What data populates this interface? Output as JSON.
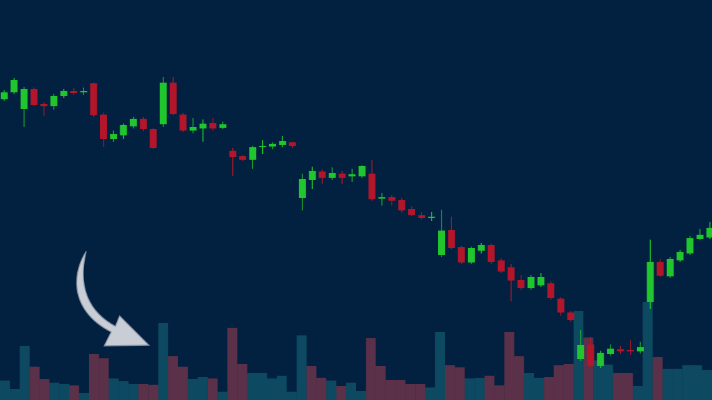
{
  "chart_data": {
    "type": "candlestick",
    "ylim": [
      0,
      576
    ],
    "volume_ylim": [
      0,
      576
    ],
    "up_color": "#21c52d",
    "down_color": "#b3162a",
    "open": [
      433,
      443,
      419,
      448,
      426,
      423,
      438,
      445,
      443,
      456,
      411,
      376,
      381,
      394,
      405,
      390,
      397,
      457,
      411,
      388,
      391,
      399,
      392,
      359,
      351,
      346,
      364,
      365,
      367,
      371,
      291,
      317,
      329,
      320,
      326,
      322,
      322,
      326,
      290,
      292,
      288,
      275,
      266,
      262,
      209,
      245,
      220,
      198,
      215,
      223,
      201,
      191,
      173,
      161,
      165,
      168,
      146,
      126,
      59,
      80,
      49,
      66,
      73,
      72,
      70,
      141,
      199,
      178,
      201,
      211,
      232,
      234
    ],
    "high": [
      446,
      464,
      451,
      450,
      429,
      441,
      448,
      449,
      450,
      457,
      414,
      388,
      398,
      408,
      408,
      391,
      465,
      465,
      413,
      406,
      404,
      406,
      401,
      363,
      353,
      366,
      374,
      371,
      380,
      372,
      326,
      336,
      332,
      335,
      330,
      333,
      338,
      346,
      298,
      295,
      291,
      279,
      271,
      271,
      274,
      264,
      222,
      221,
      226,
      225,
      204,
      196,
      180,
      180,
      183,
      171,
      148,
      128,
      101,
      91,
      71,
      80,
      78,
      86,
      84,
      231,
      203,
      206,
      216,
      236,
      246,
      256
    ],
    "low": [
      431,
      441,
      393,
      423,
      409,
      418,
      435,
      439,
      439,
      408,
      364,
      372,
      376,
      391,
      387,
      362,
      393,
      410,
      386,
      384,
      372,
      388,
      390,
      323,
      344,
      333,
      354,
      361,
      364,
      363,
      273,
      304,
      311,
      317,
      311,
      314,
      320,
      287,
      280,
      280,
      270,
      265,
      260,
      258,
      206,
      217,
      196,
      196,
      211,
      196,
      183,
      142,
      158,
      159,
      163,
      144,
      121,
      113,
      56,
      48,
      46,
      64,
      66,
      65,
      67,
      131,
      177,
      176,
      199,
      209,
      230,
      232
    ],
    "close": [
      443,
      461,
      448,
      425,
      423,
      438,
      445,
      442,
      445,
      410,
      376,
      383,
      396,
      405,
      390,
      363,
      457,
      412,
      388,
      393,
      398,
      391,
      397,
      350,
      346,
      364,
      366,
      369,
      373,
      366,
      318,
      330,
      320,
      327,
      320,
      325,
      337,
      289,
      292,
      287,
      273,
      266,
      262,
      264,
      244,
      219,
      198,
      219,
      223,
      199,
      185,
      172,
      161,
      177,
      177,
      147,
      126,
      115,
      79,
      49,
      68,
      74,
      70,
      70,
      76,
      199,
      179,
      203,
      213,
      233,
      238,
      248
    ],
    "volume": [
      28,
      16,
      78,
      48,
      30,
      25,
      23,
      21,
      10,
      66,
      60,
      31,
      27,
      23,
      23,
      22,
      111,
      63,
      48,
      30,
      33,
      31,
      12,
      104,
      52,
      39,
      39,
      31,
      35,
      12,
      93,
      49,
      32,
      28,
      20,
      25,
      13,
      89,
      49,
      29,
      29,
      23,
      23,
      18,
      98,
      50,
      47,
      31,
      32,
      35,
      21,
      98,
      63,
      39,
      32,
      33,
      50,
      52,
      128,
      90,
      57,
      51,
      39,
      39,
      20,
      141,
      62,
      45,
      45,
      50,
      50,
      43
    ],
    "volume_colors": [
      "#0d4a62",
      "#0d4a62",
      "#0d4a62",
      "#5b3049",
      "#5b3049",
      "#0d4a62",
      "#0d4a62",
      "#5b3049",
      "#0d4a62",
      "#5b3049",
      "#5b3049",
      "#0d4a62",
      "#0d4a62",
      "#0d4a62",
      "#5b3049",
      "#5b3049",
      "#0d4a62",
      "#5b3049",
      "#5b3049",
      "#0d4a62",
      "#0d4a62",
      "#5b3049",
      "#0d4a62",
      "#5b3049",
      "#5b3049",
      "#0d4a62",
      "#0d4a62",
      "#0d4a62",
      "#0d4a62",
      "#0d4a62",
      "#0d4a62",
      "#5b3049",
      "#5b3049",
      "#0d4a62",
      "#5b3049",
      "#0d4a62",
      "#0d4a62",
      "#5b3049",
      "#5b3049",
      "#5b3049",
      "#5b3049",
      "#5b3049",
      "#5b3049",
      "#0d4a62",
      "#0d4a62",
      "#5b3049",
      "#5b3049",
      "#0d4a62",
      "#0d4a62",
      "#5b3049",
      "#5b3049",
      "#5b3049",
      "#5b3049",
      "#0d4a62",
      "#0d4a62",
      "#5b3049",
      "#5b3049",
      "#5b3049",
      "#0d4a62",
      "#5b3049",
      "#0d4a62",
      "#0d4a62",
      "#5b3049",
      "#5b3049",
      "#0d4a62",
      "#0d4a62",
      "#5b3049",
      "#0d4a62",
      "#0d4a62",
      "#0d4a62",
      "#0d4a62",
      "#0d4a62"
    ]
  }
}
